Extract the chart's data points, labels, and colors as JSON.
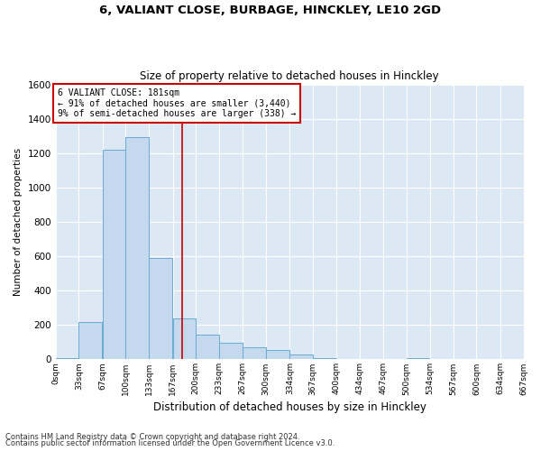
{
  "title1": "6, VALIANT CLOSE, BURBAGE, HINCKLEY, LE10 2GD",
  "title2": "Size of property relative to detached houses in Hinckley",
  "xlabel": "Distribution of detached houses by size in Hinckley",
  "ylabel": "Number of detached properties",
  "bar_color": "#c5d9ee",
  "bar_edge_color": "#6aabd2",
  "background_color": "#dce9f5",
  "grid_color": "#ffffff",
  "property_line_x": 181,
  "property_line_color": "#cc0000",
  "annotation_text": "6 VALIANT CLOSE: 181sqm\n← 91% of detached houses are smaller (3,440)\n9% of semi-detached houses are larger (338) →",
  "annotation_box_color": "#ffffff",
  "annotation_box_edge": "#cc0000",
  "bin_edges": [
    0,
    33,
    67,
    100,
    133,
    167,
    200,
    233,
    267,
    300,
    334,
    367,
    400,
    434,
    467,
    500,
    534,
    567,
    600,
    634,
    667
  ],
  "bar_heights": [
    5,
    215,
    1220,
    1295,
    590,
    240,
    145,
    95,
    70,
    55,
    30,
    5,
    0,
    0,
    0,
    5,
    0,
    0,
    0,
    0
  ],
  "ylim": [
    0,
    1600
  ],
  "yticks": [
    0,
    200,
    400,
    600,
    800,
    1000,
    1200,
    1400,
    1600
  ],
  "footnote1": "Contains HM Land Registry data © Crown copyright and database right 2024.",
  "footnote2": "Contains public sector information licensed under the Open Government Licence v3.0."
}
